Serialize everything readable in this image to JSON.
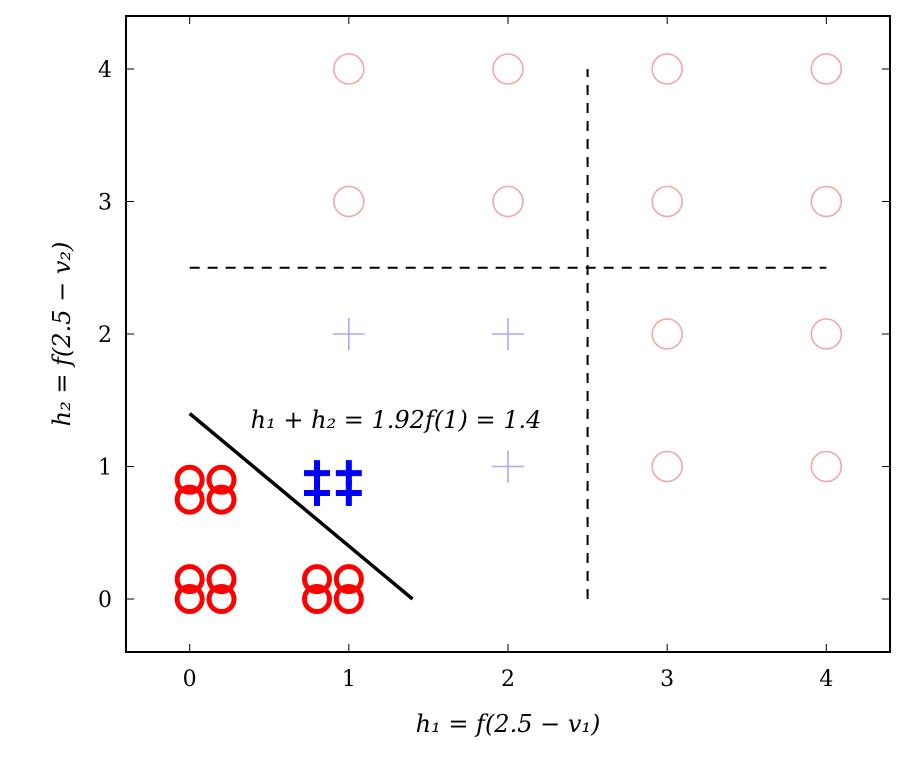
{
  "chart_data": {
    "type": "scatter",
    "title": "",
    "xlabel": "h₁ = f(2.5 − v₁)",
    "ylabel": "h₂ = f(2.5 − v₂)",
    "xlim": [
      -0.4,
      4.4
    ],
    "ylim": [
      -0.4,
      4.4
    ],
    "xticks": [
      "0",
      "1",
      "2",
      "3",
      "4"
    ],
    "yticks": [
      "0",
      "1",
      "2",
      "3",
      "4"
    ],
    "grid": false,
    "legend": "none",
    "series": [
      {
        "marker": "circle",
        "color": "#f4a6a6",
        "points": [
          [
            1,
            4
          ],
          [
            2,
            4
          ],
          [
            3,
            4
          ],
          [
            4,
            4
          ],
          [
            1,
            3
          ],
          [
            2,
            3
          ],
          [
            3,
            3
          ],
          [
            4,
            3
          ],
          [
            3,
            2
          ],
          [
            4,
            2
          ],
          [
            3,
            1
          ],
          [
            4,
            1
          ]
        ]
      },
      {
        "marker": "plus",
        "color": "#a9a9f5",
        "points": [
          [
            1,
            2
          ],
          [
            2,
            2
          ],
          [
            2,
            1
          ]
        ]
      },
      {
        "marker": "circle",
        "color": "#ff0000",
        "bold": true,
        "points": [
          [
            0,
            0.9
          ],
          [
            0.2,
            0.9
          ],
          [
            0,
            0.75
          ],
          [
            0.2,
            0.75
          ],
          [
            0,
            0.15
          ],
          [
            0.2,
            0.15
          ],
          [
            0,
            0
          ],
          [
            0.2,
            0
          ],
          [
            0.8,
            0.15
          ],
          [
            1,
            0.15
          ],
          [
            0.8,
            0
          ],
          [
            1,
            0
          ]
        ]
      },
      {
        "marker": "plus",
        "color": "#0000ff",
        "bold": true,
        "points": [
          [
            0.8,
            0.95
          ],
          [
            1,
            0.95
          ],
          [
            0.8,
            0.8
          ],
          [
            1,
            0.8
          ]
        ]
      }
    ],
    "lines": [
      {
        "style": "solid",
        "color": "#000000",
        "points": [
          [
            0,
            1.4
          ],
          [
            1.4,
            0
          ]
        ]
      },
      {
        "style": "dashed",
        "color": "#000000",
        "points": [
          [
            0,
            2.5
          ],
          [
            4,
            2.5
          ]
        ]
      },
      {
        "style": "dashed",
        "color": "#000000",
        "points": [
          [
            2.5,
            0
          ],
          [
            2.5,
            4
          ]
        ]
      }
    ],
    "annotations": [
      {
        "text": "h₁ + h₂ = 1.92f(1) = 1.4",
        "x": 1.45,
        "y": 1.4
      }
    ]
  }
}
